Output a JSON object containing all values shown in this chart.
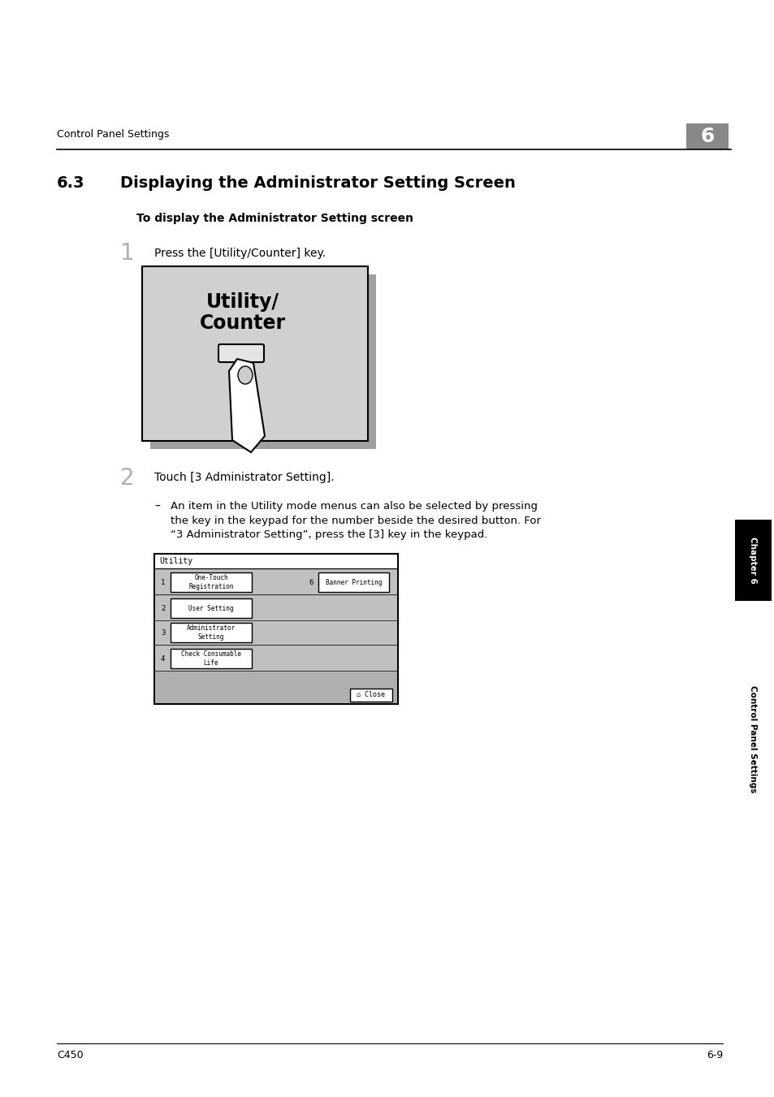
{
  "bg_color": "#ffffff",
  "header_text": "Control Panel Settings",
  "header_num": "6",
  "title_num": "6.3",
  "title_text": "Displaying the Administrator Setting Screen",
  "subtitle": "To display the Administrator Setting screen",
  "step1_num": "1",
  "step1_text": "Press the [Utility/Counter] key.",
  "step2_num": "2",
  "step2_text": "Touch [3 Administrator Setting].",
  "bullet_dash": "–",
  "bullet_text": "An item in the Utility mode menus can also be selected by pressing\nthe key in the keypad for the number beside the desired button. For\n“3 Administrator Setting”, press the [3] key in the keypad.",
  "footer_left": "C450",
  "footer_right": "6-9",
  "sidebar_chapter": "Chapter 6",
  "sidebar_bottom": "Control Panel Settings",
  "panel_gray": "#d0d0d0",
  "panel_shadow": "#a0a0a0",
  "screen_dot_bg": "#b8b8b8",
  "sidebar_black": "#000000",
  "header_gray": "#888888"
}
